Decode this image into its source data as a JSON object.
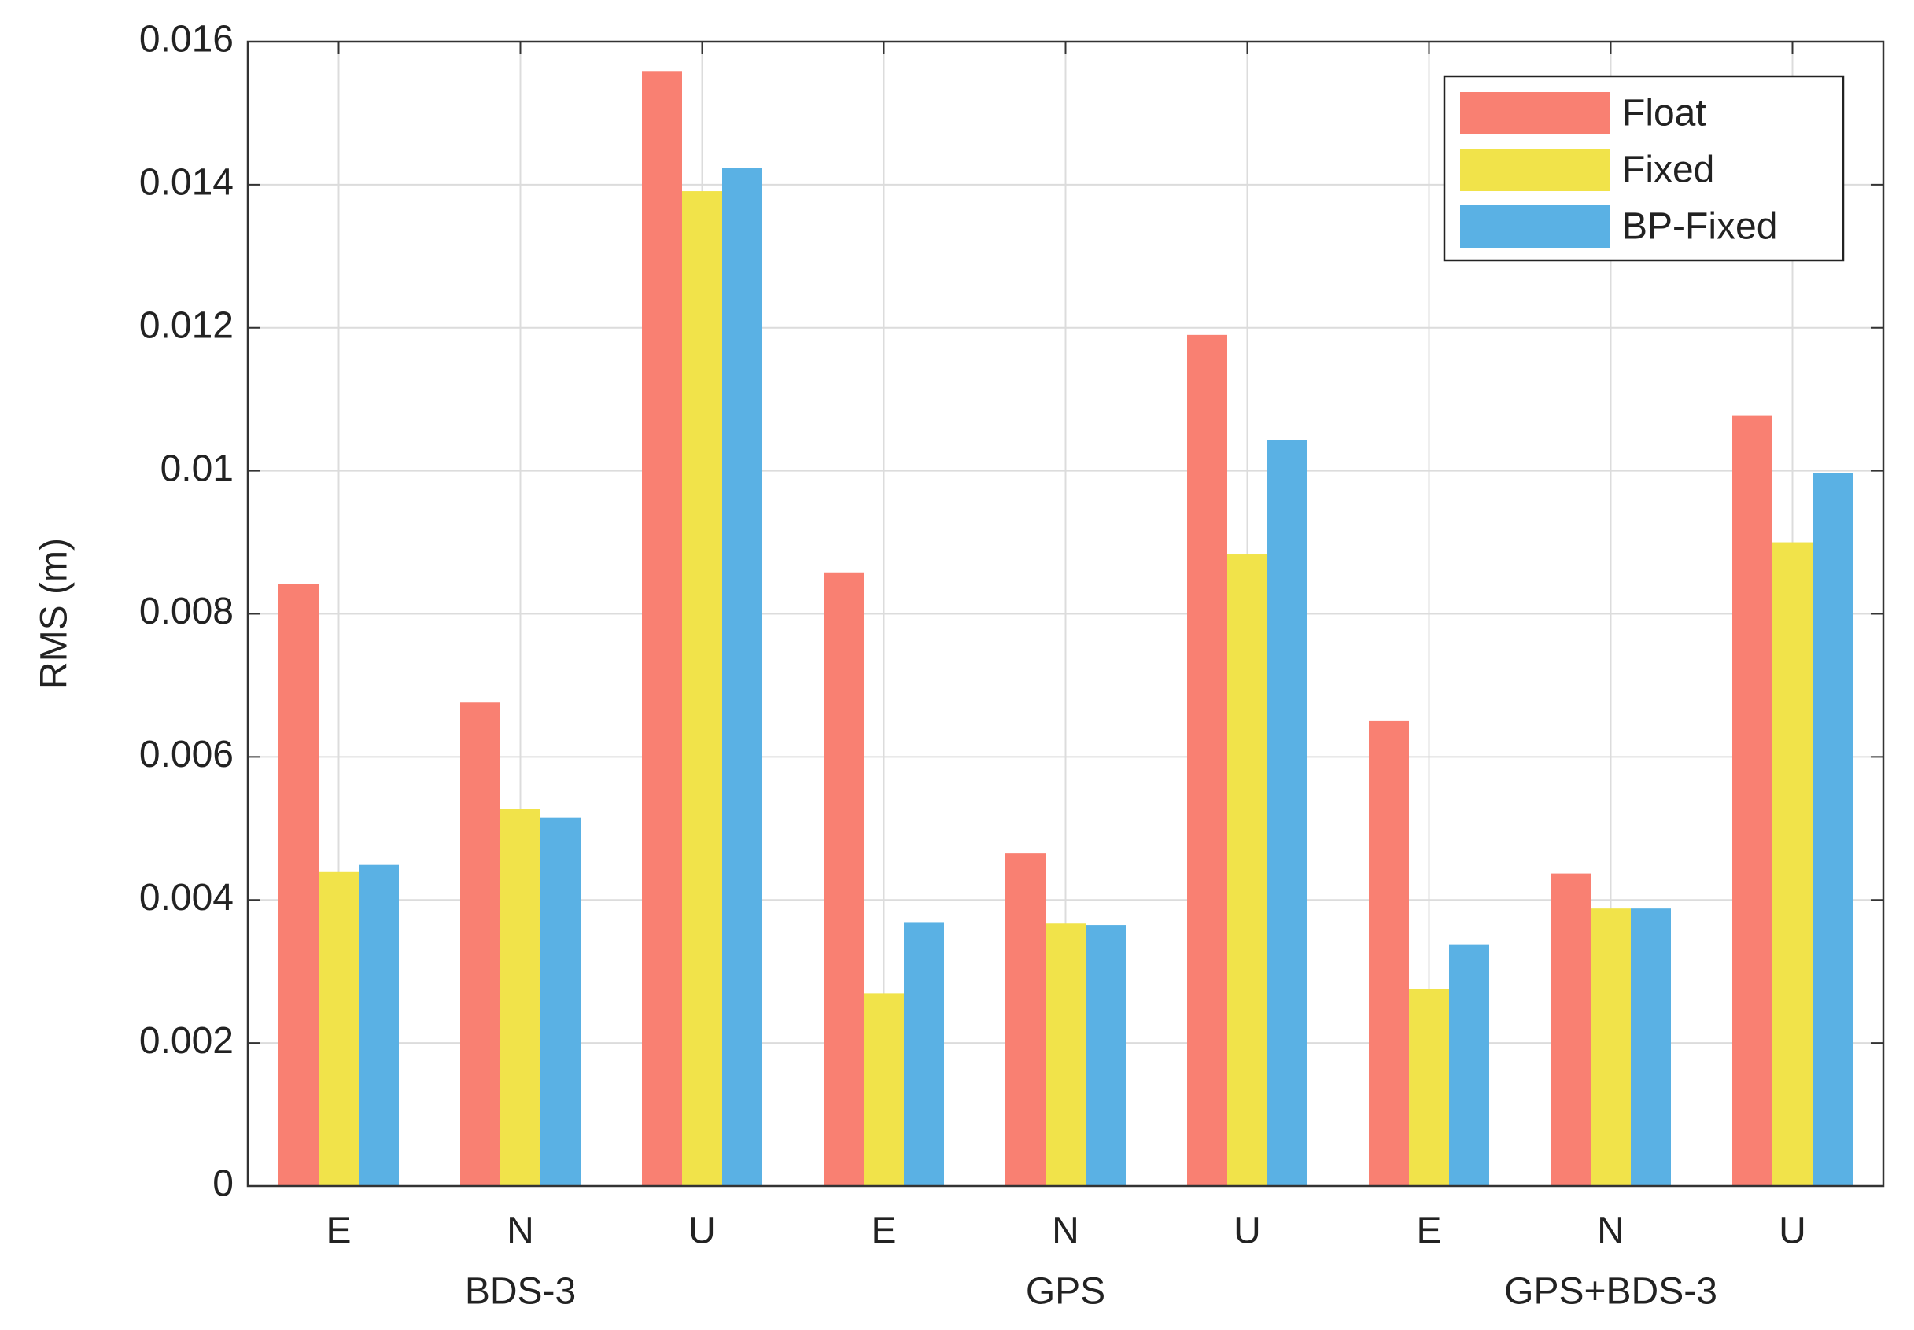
{
  "chart_data": {
    "type": "bar",
    "y_label": "RMS (m)",
    "categories": [
      "E",
      "N",
      "U",
      "E",
      "N",
      "U",
      "E",
      "N",
      "U"
    ],
    "groups": [
      "BDS-3",
      "GPS",
      "GPS+BDS-3"
    ],
    "series": [
      {
        "name": "Float",
        "color": "#f98072",
        "values": [
          0.00842,
          0.00676,
          0.01559,
          0.00858,
          0.00465,
          0.0119,
          0.0065,
          0.00437,
          0.01077
        ]
      },
      {
        "name": "Fixed",
        "color": "#f1e34a",
        "values": [
          0.00439,
          0.00527,
          0.01391,
          0.00269,
          0.00367,
          0.00883,
          0.00276,
          0.00388,
          0.009
        ]
      },
      {
        "name": "BP-Fixed",
        "color": "#5ab1e4",
        "values": [
          0.00449,
          0.00515,
          0.01424,
          0.00369,
          0.00365,
          0.01043,
          0.00338,
          0.00388,
          0.00997
        ]
      }
    ],
    "ylim": [
      0,
      0.016
    ],
    "yticks": [
      0,
      0.002,
      0.004,
      0.006,
      0.008,
      0.01,
      0.012,
      0.014,
      0.016
    ],
    "grid": true,
    "legend": "top-right"
  }
}
